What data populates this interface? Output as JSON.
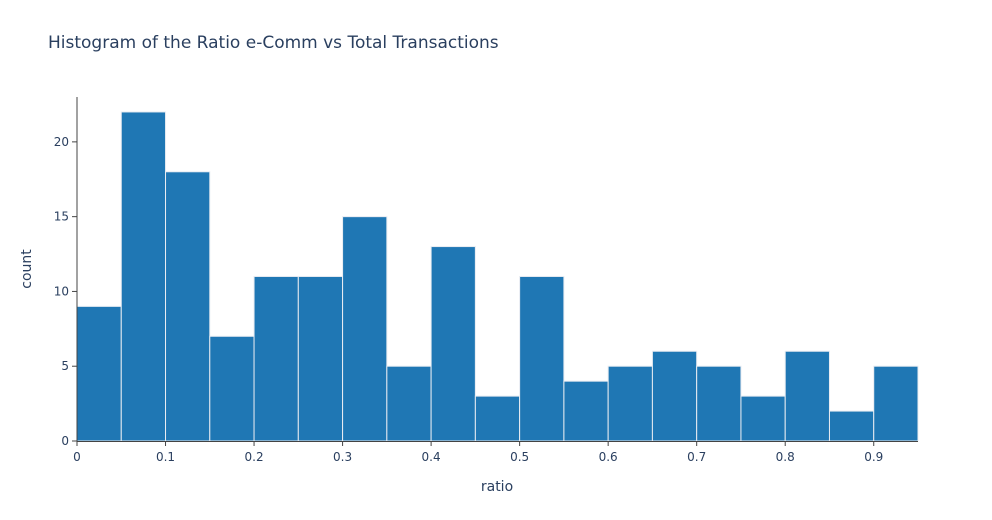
{
  "chart_data": {
    "type": "bar",
    "title": "Histogram of the Ratio e-Comm vs Total Transactions",
    "xlabel": "ratio",
    "ylabel": "count",
    "bin_width": 0.05,
    "bins_start": [
      0,
      0.05,
      0.1,
      0.15,
      0.2,
      0.25,
      0.3,
      0.35,
      0.4,
      0.45,
      0.5,
      0.55,
      0.6,
      0.65,
      0.7,
      0.75,
      0.8,
      0.85,
      0.9
    ],
    "values": [
      9,
      22,
      18,
      7,
      11,
      11,
      15,
      5,
      13,
      3,
      11,
      4,
      5,
      6,
      5,
      3,
      6,
      2,
      5
    ],
    "xlim": [
      0,
      0.95
    ],
    "ylim": [
      0,
      23
    ],
    "x_ticks": [
      0,
      0.1,
      0.2,
      0.3,
      0.4,
      0.5,
      0.6,
      0.7,
      0.8,
      0.9
    ],
    "x_tick_labels": [
      "0",
      "0.1",
      "0.2",
      "0.3",
      "0.4",
      "0.5",
      "0.6",
      "0.7",
      "0.8",
      "0.9"
    ],
    "y_ticks": [
      0,
      5,
      10,
      15,
      20
    ],
    "y_tick_labels": [
      "0",
      "5",
      "10",
      "15",
      "20"
    ],
    "grid": false,
    "bar_color": "#1f77b4",
    "bar_edge_color": "#e8ecf2",
    "axis_color": "#444444",
    "text_color": "#2a3f5f"
  }
}
